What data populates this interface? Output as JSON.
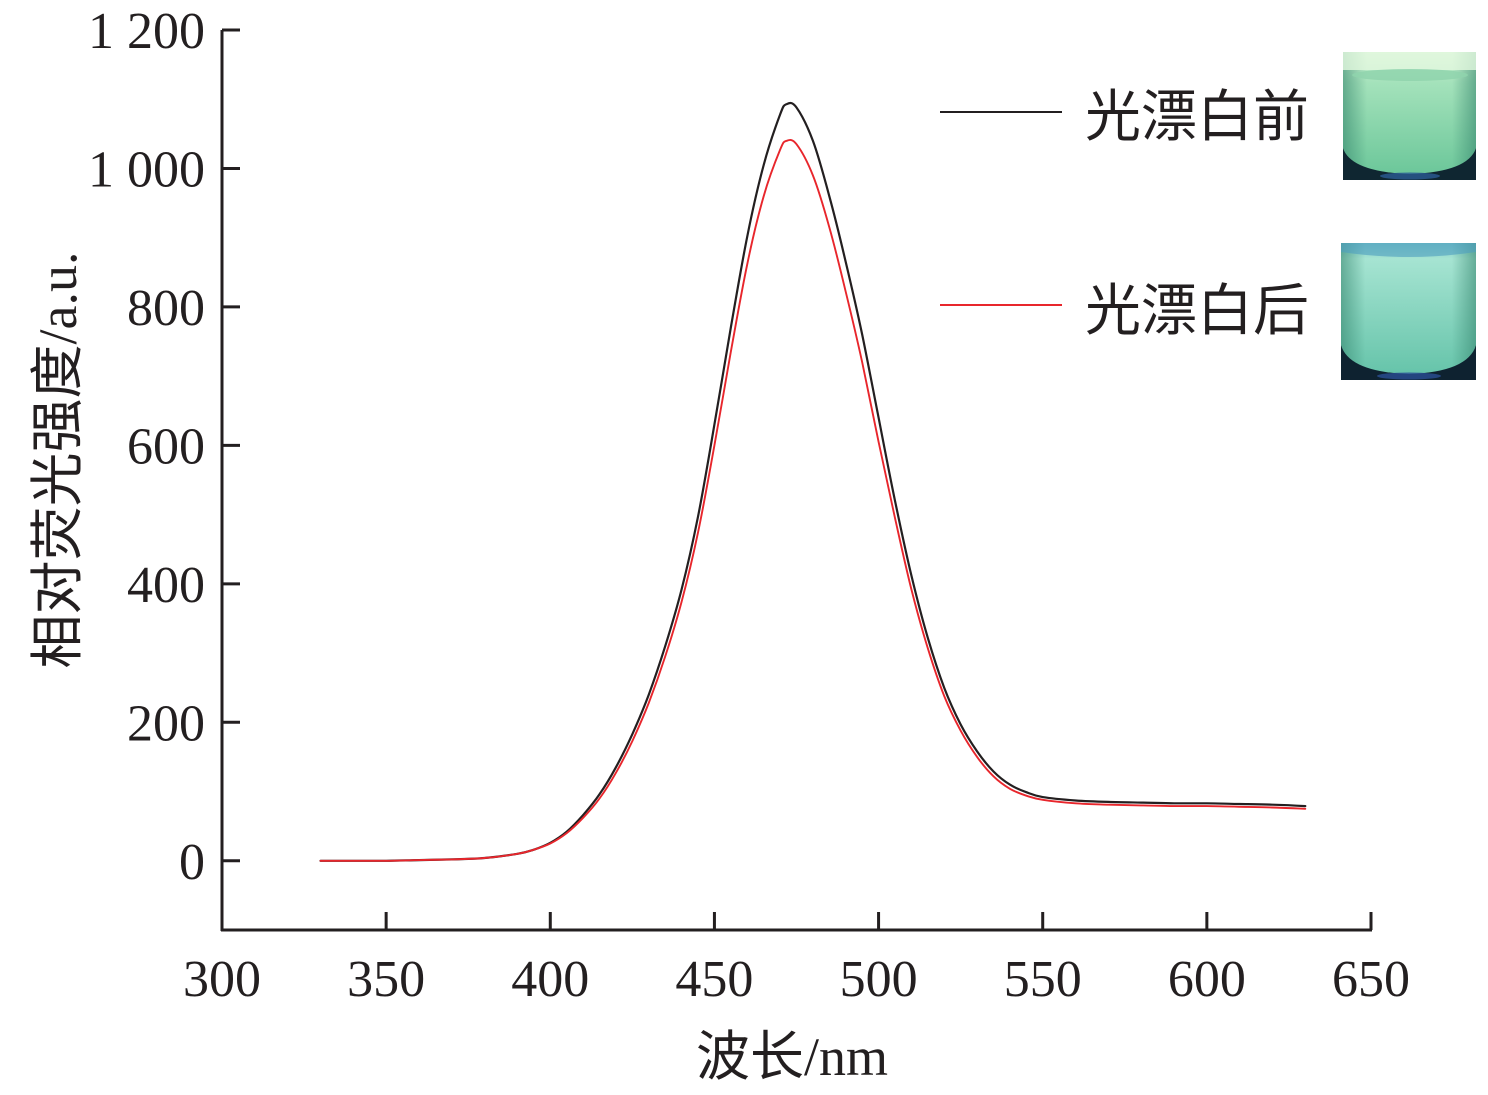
{
  "chart_data": {
    "type": "line",
    "xlabel": "波长/nm",
    "ylabel": "相对荧光强度/a.u.",
    "xlim": [
      300,
      650
    ],
    "ylim": [
      -100,
      1200
    ],
    "xticks": [
      300,
      350,
      400,
      450,
      500,
      550,
      600,
      650
    ],
    "xtick_labels": [
      "300",
      "350",
      "400",
      "450",
      "500",
      "550",
      "600",
      "650"
    ],
    "yticks": [
      0,
      200,
      400,
      600,
      800,
      1000,
      1200
    ],
    "ytick_labels": [
      "0",
      "200",
      "400",
      "600",
      "800",
      "1 000",
      "1 200"
    ],
    "grid": false,
    "legend_position": "top-right",
    "x": [
      330,
      340,
      350,
      360,
      370,
      380,
      390,
      395,
      400,
      405,
      410,
      415,
      420,
      425,
      430,
      435,
      440,
      445,
      450,
      455,
      460,
      465,
      470,
      472,
      475,
      480,
      485,
      490,
      495,
      500,
      505,
      510,
      515,
      520,
      525,
      530,
      535,
      540,
      545,
      550,
      560,
      570,
      580,
      590,
      600,
      610,
      620,
      630
    ],
    "series": [
      {
        "name": "光漂白前",
        "color": "#231f20",
        "y": [
          0,
          0,
          0,
          1,
          2,
          4,
          10,
          16,
          26,
          42,
          66,
          96,
          135,
          183,
          240,
          310,
          392,
          497,
          630,
          770,
          902,
          1005,
          1078,
          1093,
          1088,
          1040,
          960,
          865,
          760,
          640,
          520,
          412,
          322,
          250,
          197,
          158,
          129,
          110,
          99,
          92,
          87,
          85,
          84,
          83,
          83,
          82,
          81,
          79
        ]
      },
      {
        "name": "光漂白后",
        "color": "#e8262c",
        "y": [
          0,
          0,
          0,
          1,
          2,
          4,
          10,
          16,
          25,
          40,
          62,
          90,
          127,
          173,
          228,
          295,
          374,
          474,
          600,
          735,
          862,
          960,
          1027,
          1040,
          1035,
          990,
          915,
          822,
          720,
          605,
          495,
          392,
          307,
          238,
          188,
          150,
          122,
          104,
          94,
          88,
          83,
          81,
          80,
          79,
          79,
          78,
          77,
          75
        ]
      }
    ]
  }
}
